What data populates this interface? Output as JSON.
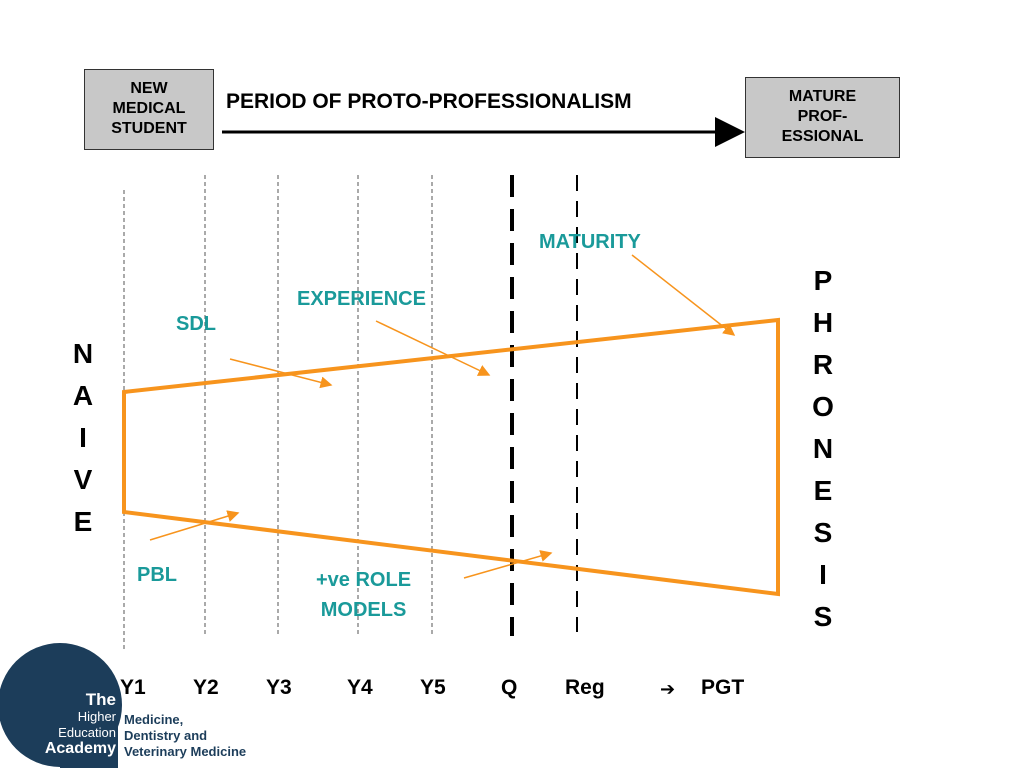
{
  "start_box": [
    "NEW",
    "MEDICAL",
    "STUDENT"
  ],
  "end_box": [
    "MATURE",
    "PROF-",
    "ESSIONAL"
  ],
  "period_title": "PERIOD OF PROTO-PROFESSIONALISM",
  "labels": {
    "maturity": "MATURITY",
    "experience": "EXPERIENCE",
    "sdl": "SDL",
    "pbl": "PBL",
    "role_models_1": "+ve ROLE",
    "role_models_2": "MODELS"
  },
  "naive_letters": [
    "N",
    "A",
    "I",
    "V",
    "E"
  ],
  "phronesis_letters": [
    "P",
    "H",
    "R",
    "O",
    "N",
    "E",
    "S",
    "I",
    "S"
  ],
  "axis": {
    "y1": "Y1",
    "y2": "Y2",
    "y3": "Y3",
    "y4": "Y4",
    "y5": "Y5",
    "q": "Q",
    "reg": "Reg",
    "arrow": "➔",
    "pgt": "PGT"
  },
  "logo": {
    "the": "The",
    "higher": "Higher",
    "education": "Education",
    "academy": "Academy",
    "sub": [
      "Medicine,",
      "Dentistry and",
      "Veterinary Medicine"
    ]
  },
  "colors": {
    "orange": "#f7941d",
    "teal": "#1a9a9a",
    "navy": "#1c3d5a",
    "box_gray": "#c8c8c8"
  }
}
